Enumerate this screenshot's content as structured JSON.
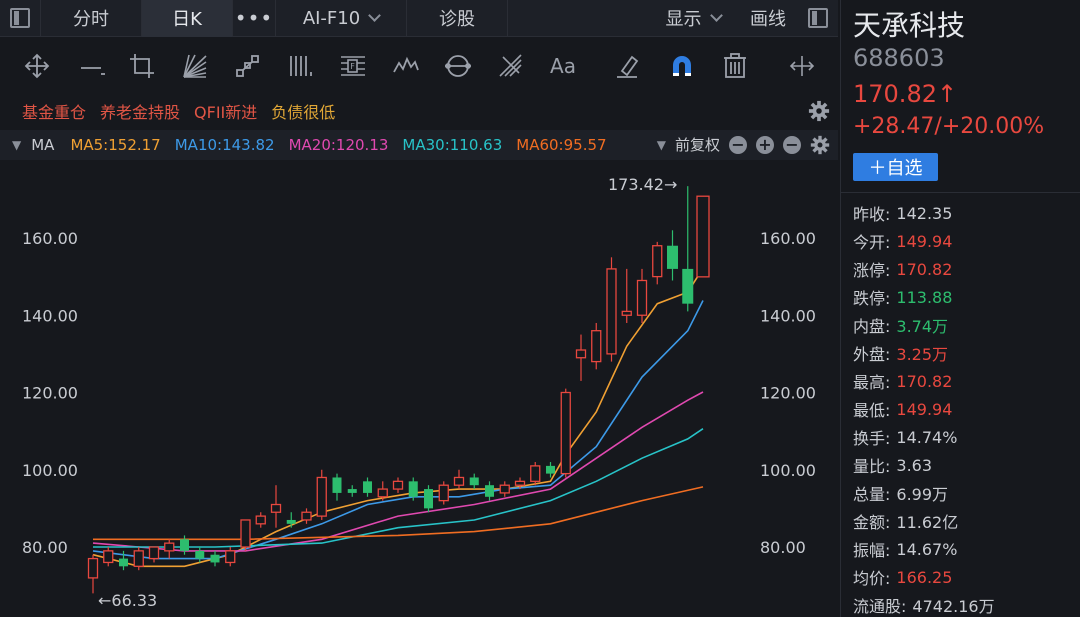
{
  "topbar": {
    "tabs": [
      {
        "label": "分时"
      },
      {
        "label": "日K"
      },
      {
        "label": "•••"
      },
      {
        "label": "AI-F10"
      },
      {
        "label": "诊股"
      }
    ],
    "display_label": "显示",
    "draw_label": "画线"
  },
  "tools": [
    {
      "icon": "move-icon"
    },
    {
      "icon": "horizontal-line-icon"
    },
    {
      "icon": "crop-icon"
    },
    {
      "icon": "fan-lines-icon"
    },
    {
      "icon": "ruler-icon"
    },
    {
      "icon": "vertical-bars-icon"
    },
    {
      "icon": "fibonacci-icon"
    },
    {
      "icon": "wave-icon"
    },
    {
      "icon": "cycle-icon"
    },
    {
      "icon": "gann-icon"
    },
    {
      "icon": "text-icon",
      "label": "Aa"
    },
    {
      "icon": "eraser-icon"
    },
    {
      "icon": "magnet-icon"
    },
    {
      "icon": "trash-icon"
    },
    {
      "icon": "scale-icon"
    }
  ],
  "tags": [
    "基金重仓",
    "养老金持股",
    "QFII新进",
    "负债很低"
  ],
  "ma": {
    "label": "MA",
    "items": [
      {
        "text": "MA5:152.17",
        "color": "#f0a033"
      },
      {
        "text": "MA10:143.82",
        "color": "#3d9ae8"
      },
      {
        "text": "MA20:120.13",
        "color": "#e049b0"
      },
      {
        "text": "MA30:110.63",
        "color": "#28c3c8"
      },
      {
        "text": "MA60:95.57",
        "color": "#f06d22"
      }
    ],
    "adjust_label": "前复权"
  },
  "chart_data": {
    "type": "candlestick",
    "y_ticks": [
      "160.00",
      "140.00",
      "120.00",
      "100.00",
      "80.00"
    ],
    "ylim": [
      65,
      175
    ],
    "high_annotation": "173.42→",
    "low_annotation": "←66.33",
    "candles": [
      {
        "o": 72,
        "c": 77,
        "h": 78,
        "l": 68
      },
      {
        "o": 76,
        "c": 79,
        "h": 80,
        "l": 75
      },
      {
        "o": 77,
        "c": 75,
        "h": 79,
        "l": 74
      },
      {
        "o": 75,
        "c": 79,
        "h": 80,
        "l": 74
      },
      {
        "o": 77,
        "c": 80,
        "h": 80,
        "l": 76
      },
      {
        "o": 79,
        "c": 81,
        "h": 82,
        "l": 77
      },
      {
        "o": 82,
        "c": 79,
        "h": 83,
        "l": 78
      },
      {
        "o": 79,
        "c": 77,
        "h": 80,
        "l": 76
      },
      {
        "o": 78,
        "c": 76,
        "h": 79,
        "l": 75
      },
      {
        "o": 76,
        "c": 79,
        "h": 80,
        "l": 75
      },
      {
        "o": 80,
        "c": 87,
        "h": 87,
        "l": 79
      },
      {
        "o": 86,
        "c": 88,
        "h": 89,
        "l": 85
      },
      {
        "o": 89,
        "c": 91,
        "h": 96,
        "l": 85
      },
      {
        "o": 87,
        "c": 86,
        "h": 89,
        "l": 85
      },
      {
        "o": 87,
        "c": 89,
        "h": 90,
        "l": 86
      },
      {
        "o": 88,
        "c": 98,
        "h": 100,
        "l": 87
      },
      {
        "o": 98,
        "c": 94,
        "h": 99,
        "l": 92
      },
      {
        "o": 95,
        "c": 94,
        "h": 96,
        "l": 93
      },
      {
        "o": 97,
        "c": 94,
        "h": 98,
        "l": 93
      },
      {
        "o": 93,
        "c": 95,
        "h": 97,
        "l": 92
      },
      {
        "o": 95,
        "c": 97,
        "h": 98,
        "l": 94
      },
      {
        "o": 97,
        "c": 93,
        "h": 98,
        "l": 92
      },
      {
        "o": 95,
        "c": 90,
        "h": 96,
        "l": 89
      },
      {
        "o": 92,
        "c": 96,
        "h": 97,
        "l": 91
      },
      {
        "o": 96,
        "c": 98,
        "h": 100,
        "l": 95
      },
      {
        "o": 98,
        "c": 96,
        "h": 99,
        "l": 95
      },
      {
        "o": 96,
        "c": 93,
        "h": 97,
        "l": 92
      },
      {
        "o": 94,
        "c": 96,
        "h": 97,
        "l": 93
      },
      {
        "o": 96,
        "c": 97,
        "h": 98,
        "l": 95
      },
      {
        "o": 97,
        "c": 101,
        "h": 102,
        "l": 96
      },
      {
        "o": 101,
        "c": 99,
        "h": 102,
        "l": 98
      },
      {
        "o": 99,
        "c": 120,
        "h": 121,
        "l": 98
      },
      {
        "o": 129,
        "c": 131,
        "h": 135,
        "l": 123
      },
      {
        "o": 128,
        "c": 136,
        "h": 138,
        "l": 126
      },
      {
        "o": 130,
        "c": 152,
        "h": 155,
        "l": 128
      },
      {
        "o": 140,
        "c": 141,
        "h": 152,
        "l": 138
      },
      {
        "o": 140,
        "c": 149,
        "h": 152,
        "l": 138
      },
      {
        "o": 150,
        "c": 158,
        "h": 159,
        "l": 148
      },
      {
        "o": 158,
        "c": 152,
        "h": 162,
        "l": 149
      },
      {
        "o": 152,
        "c": 143,
        "h": 173.42,
        "l": 141
      },
      {
        "o": 149.94,
        "c": 170.82,
        "h": 170.82,
        "l": 149.94
      }
    ],
    "series": [
      {
        "name": "MA5",
        "color": "#f0a033",
        "values": [
          [
            0,
            78
          ],
          [
            3,
            75
          ],
          [
            6,
            75
          ],
          [
            9,
            78
          ],
          [
            12,
            84
          ],
          [
            15,
            89
          ],
          [
            18,
            92
          ],
          [
            21,
            94
          ],
          [
            24,
            95
          ],
          [
            27,
            95
          ],
          [
            30,
            97
          ],
          [
            31,
            104
          ],
          [
            33,
            115
          ],
          [
            35,
            132
          ],
          [
            37,
            143
          ],
          [
            39,
            146
          ],
          [
            40,
            152.17
          ]
        ]
      },
      {
        "name": "MA10",
        "color": "#3d9ae8",
        "values": [
          [
            0,
            79
          ],
          [
            4,
            77
          ],
          [
            8,
            77
          ],
          [
            12,
            82
          ],
          [
            15,
            86
          ],
          [
            18,
            91
          ],
          [
            21,
            93
          ],
          [
            24,
            93
          ],
          [
            27,
            95
          ],
          [
            30,
            96
          ],
          [
            33,
            106
          ],
          [
            36,
            124
          ],
          [
            39,
            136
          ],
          [
            40,
            143.82
          ]
        ]
      },
      {
        "name": "MA20",
        "color": "#e049b0",
        "values": [
          [
            0,
            81
          ],
          [
            6,
            79
          ],
          [
            10,
            79
          ],
          [
            15,
            82
          ],
          [
            20,
            88
          ],
          [
            25,
            91
          ],
          [
            30,
            95
          ],
          [
            33,
            103
          ],
          [
            36,
            111
          ],
          [
            39,
            118
          ],
          [
            40,
            120.13
          ]
        ]
      },
      {
        "name": "MA30",
        "color": "#28c3c8",
        "values": [
          [
            0,
            80
          ],
          [
            8,
            80
          ],
          [
            15,
            81
          ],
          [
            20,
            85
          ],
          [
            25,
            87
          ],
          [
            30,
            92
          ],
          [
            33,
            97
          ],
          [
            36,
            103
          ],
          [
            39,
            108
          ],
          [
            40,
            110.63
          ]
        ]
      },
      {
        "name": "MA60",
        "color": "#f06d22",
        "values": [
          [
            0,
            82
          ],
          [
            10,
            82
          ],
          [
            20,
            83
          ],
          [
            25,
            84
          ],
          [
            30,
            86
          ],
          [
            33,
            89
          ],
          [
            36,
            92
          ],
          [
            40,
            95.57
          ]
        ]
      }
    ]
  },
  "stock": {
    "name": "天承科技",
    "code": "688603",
    "price": "170.82↑",
    "change": "+28.47/+20.00%",
    "fav_label": "＋自选"
  },
  "stats": [
    {
      "label": "昨收:",
      "value": "142.35",
      "tone": "neutral"
    },
    {
      "label": "今开:",
      "value": "149.94",
      "tone": "up"
    },
    {
      "label": "涨停:",
      "value": "170.82",
      "tone": "up"
    },
    {
      "label": "跌停:",
      "value": "113.88",
      "tone": "down"
    },
    {
      "label": "内盘:",
      "value": "3.74万",
      "tone": "down"
    },
    {
      "label": "外盘:",
      "value": "3.25万",
      "tone": "up"
    },
    {
      "label": "最高:",
      "value": "170.82",
      "tone": "up"
    },
    {
      "label": "最低:",
      "value": "149.94",
      "tone": "up"
    },
    {
      "label": "换手:",
      "value": "14.74%",
      "tone": "neutral"
    },
    {
      "label": "量比:",
      "value": "3.63",
      "tone": "neutral"
    },
    {
      "label": "总量:",
      "value": "6.99万",
      "tone": "neutral"
    },
    {
      "label": "金额:",
      "value": "11.62亿",
      "tone": "neutral"
    },
    {
      "label": "振幅:",
      "value": "14.67%",
      "tone": "neutral"
    },
    {
      "label": "均价:",
      "value": "166.25",
      "tone": "up"
    },
    {
      "label": "流通股:",
      "value": "4742.16万",
      "tone": "neutral"
    }
  ]
}
